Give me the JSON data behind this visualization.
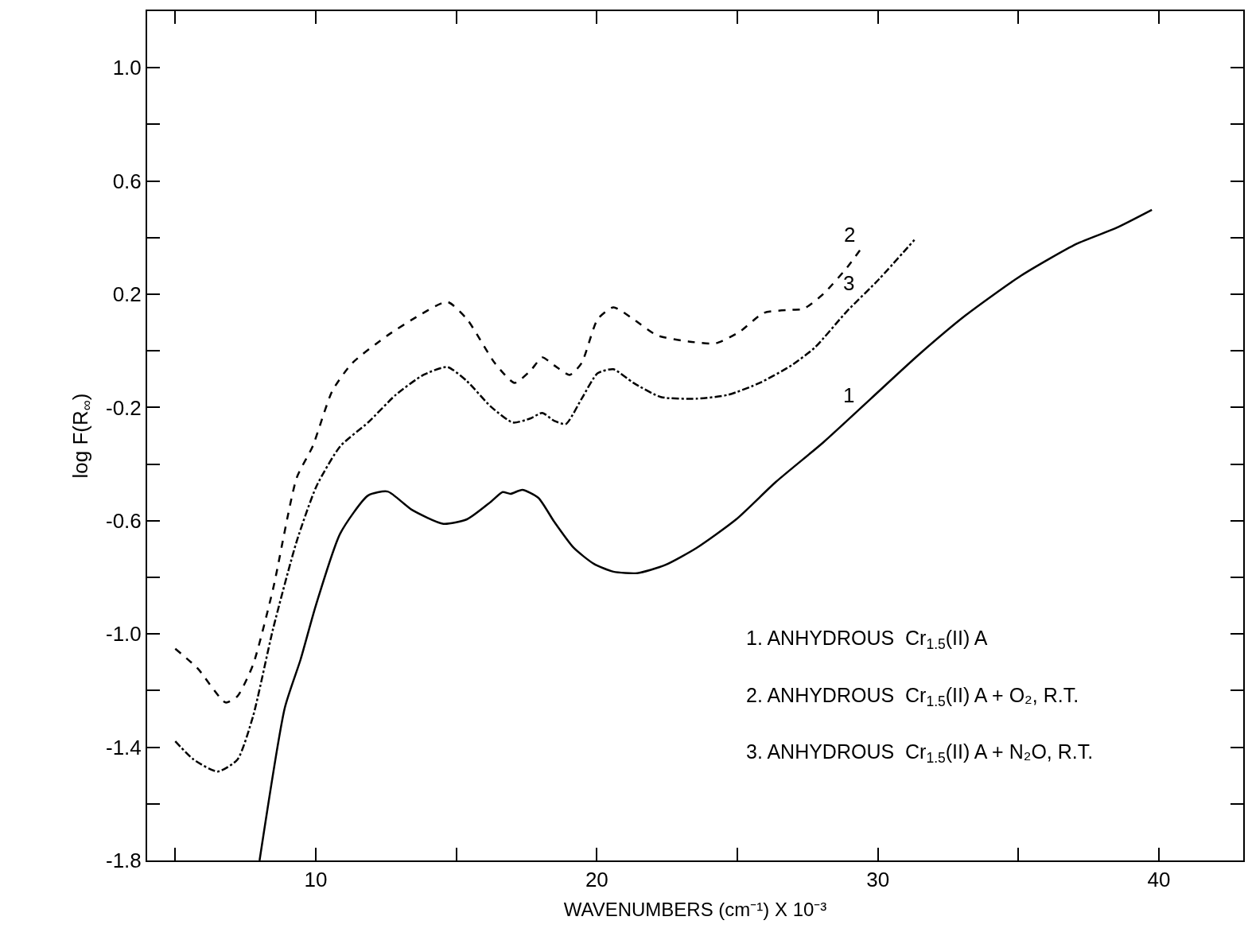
{
  "chart_data": {
    "type": "line",
    "xlabel": "WAVENUMBERS (cm⁻¹) X 10⁻³",
    "ylabel": "log F(R$_{∞}$)",
    "xlim": [
      4,
      43
    ],
    "ylim": [
      -1.8,
      1.2
    ],
    "xticks": [
      {
        "value": 5,
        "label": null
      },
      10,
      {
        "value": 15,
        "label": null
      },
      20,
      {
        "value": 25,
        "label": null
      },
      30,
      {
        "value": 35,
        "label": null
      },
      40
    ],
    "yticks": [
      -1.8,
      {
        "value": -1.6,
        "label": null
      },
      -1.4,
      {
        "value": -1.2,
        "label": null
      },
      {
        "value": -1.0,
        "label": "-1.0"
      },
      {
        "value": -0.8,
        "label": null
      },
      -0.6,
      {
        "value": -0.4,
        "label": null
      },
      -0.2,
      {
        "value": 0,
        "label": null
      },
      0.2,
      {
        "value": 0.4,
        "label": null
      },
      0.6,
      {
        "value": 0.8,
        "label": null
      },
      {
        "value": 1.0,
        "label": "1.0"
      }
    ],
    "marker": "none",
    "series": [
      {
        "color": "#000000",
        "line_style": "solid",
        "x": [
          8.0,
          8.9,
          9.46,
          10.0,
          10.87,
          11.86,
          12.56,
          13.41,
          14.54,
          15.38,
          16.23,
          16.65,
          16.93,
          17.35,
          17.92,
          18.48,
          19.18,
          19.89,
          20.59,
          21.44,
          22.42,
          23.55,
          24.96,
          26.37,
          28.06,
          29.75,
          31.44,
          33.13,
          35.1,
          37.07,
          38.48,
          39.75
        ],
        "values": [
          -1.8,
          -1.26,
          -1.09,
          -0.9,
          -0.645,
          -0.511,
          -0.497,
          -0.561,
          -0.611,
          -0.595,
          -0.533,
          -0.499,
          -0.505,
          -0.491,
          -0.519,
          -0.603,
          -0.696,
          -0.752,
          -0.78,
          -0.785,
          -0.757,
          -0.696,
          -0.595,
          -0.463,
          -0.323,
          -0.169,
          -0.015,
          0.126,
          0.266,
          0.378,
          0.434,
          0.498
        ]
      },
      {
        "color": "#000000",
        "line_style": "dashed",
        "x": [
          5.0,
          5.8,
          6.79,
          7.21,
          7.77,
          8.48,
          9.32,
          9.89,
          10.59,
          11.3,
          12.56,
          13.69,
          14.68,
          15.38,
          16.37,
          17.07,
          17.63,
          18.06,
          18.48,
          19.04,
          19.46,
          20.03,
          20.59,
          21.3,
          22.14,
          23.27,
          24.25,
          25.1,
          25.94,
          26.93,
          27.35,
          28.06,
          28.9,
          29.46
        ],
        "values": [
          -1.052,
          -1.122,
          -1.242,
          -1.22,
          -1.108,
          -0.841,
          -0.449,
          -0.337,
          -0.141,
          -0.043,
          0.055,
          0.126,
          0.173,
          0.112,
          -0.043,
          -0.113,
          -0.071,
          -0.023,
          -0.051,
          -0.085,
          -0.043,
          0.112,
          0.154,
          0.112,
          0.055,
          0.033,
          0.027,
          0.069,
          0.134,
          0.145,
          0.148,
          0.201,
          0.294,
          0.369
        ]
      },
      {
        "color": "#000000",
        "line_style": "dashdot",
        "x": [
          5.0,
          5.66,
          6.51,
          7.21,
          7.77,
          8.48,
          9.32,
          10.03,
          10.87,
          11.86,
          12.85,
          13.83,
          14.68,
          15.38,
          16.23,
          17.01,
          17.63,
          18.06,
          18.48,
          18.9,
          19.46,
          20.03,
          20.59,
          21.3,
          22.28,
          23.55,
          24.68,
          25.8,
          26.93,
          27.77,
          28.9,
          30.03,
          31.3
        ],
        "values": [
          -1.379,
          -1.444,
          -1.486,
          -1.444,
          -1.29,
          -0.982,
          -0.673,
          -0.477,
          -0.337,
          -0.253,
          -0.155,
          -0.085,
          -0.057,
          -0.107,
          -0.197,
          -0.253,
          -0.239,
          -0.219,
          -0.247,
          -0.258,
          -0.169,
          -0.079,
          -0.065,
          -0.113,
          -0.163,
          -0.169,
          -0.155,
          -0.113,
          -0.051,
          0.013,
          0.14,
          0.252,
          0.392
        ]
      }
    ],
    "annotations": [
      "1",
      "2",
      "3",
      "1. ANHYDROUS  Cr$_{1.5}$(II) A",
      "2. ANHYDROUS  Cr$_{1.5}$(II) A + O₂, R.T.",
      "3. ANHYDROUS  Cr$_{1.5}$(II) A + N₂O, R.T."
    ]
  }
}
